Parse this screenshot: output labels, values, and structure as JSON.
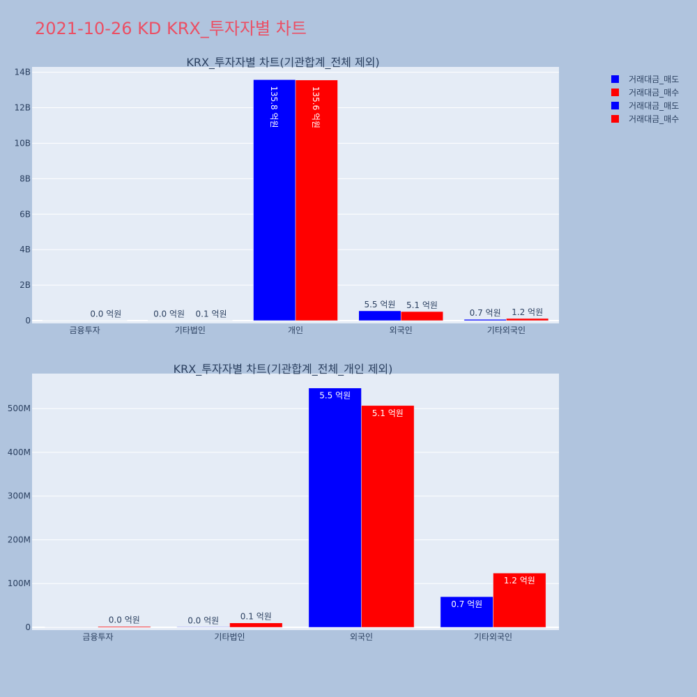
{
  "page": {
    "title": "2021-10-26 KD KRX_투자자별 차트",
    "title_color": "#eb4f64",
    "background": "#b0c4de",
    "plot_background": "#e5ecf6"
  },
  "legend": {
    "placement": "top-right",
    "items": [
      {
        "label": "거래대금_매도",
        "color": "#0000ff"
      },
      {
        "label": "거래대금_매수",
        "color": "#ff0000"
      },
      {
        "label": "거래대금_매도",
        "color": "#0000ff"
      },
      {
        "label": "거래대금_매수",
        "color": "#ff0000"
      }
    ]
  },
  "chart_data": [
    {
      "type": "bar",
      "title": "KRX_투자자별 차트(기관합계_전체 제외)",
      "categories": [
        "금융투자",
        "기타법인",
        "개인",
        "외국인",
        "기타외국인"
      ],
      "ylim": [
        0,
        14300000000
      ],
      "yticks": [
        0,
        2000000000,
        4000000000,
        6000000000,
        8000000000,
        10000000000,
        12000000000,
        14000000000
      ],
      "ytick_labels": [
        "0",
        "2B",
        "4B",
        "6B",
        "8B",
        "10B",
        "12B",
        "14B"
      ],
      "grid": true,
      "series": [
        {
          "name": "거래대금_매도",
          "color": "#0000ff",
          "values": [
            0,
            1000000,
            13580000000,
            550000000,
            70000000
          ],
          "labels": [
            "",
            "0.0 억원",
            "135.8 억원",
            "5.5 억원",
            "0.7 억원"
          ]
        },
        {
          "name": "거래대금_매수",
          "color": "#ff0000",
          "values": [
            2000000,
            10000000,
            13560000000,
            510000000,
            120000000
          ],
          "labels": [
            "0.0 억원",
            "0.1 억원",
            "135.6 억원",
            "5.1 억원",
            "1.2 억원"
          ]
        }
      ]
    },
    {
      "type": "bar",
      "title": "KRX_투자자별 차트(기관합계_전체_개인 제외)",
      "categories": [
        "금융투자",
        "기타법인",
        "외국인",
        "기타외국인"
      ],
      "ylim": [
        0,
        580000000
      ],
      "yticks": [
        0,
        100000000,
        200000000,
        300000000,
        400000000,
        500000000
      ],
      "ytick_labels": [
        "0",
        "100M",
        "200M",
        "300M",
        "400M",
        "500M"
      ],
      "grid": true,
      "series": [
        {
          "name": "거래대금_매도",
          "color": "#0000ff",
          "values": [
            0,
            1000000,
            547000000,
            70000000
          ],
          "labels": [
            "",
            "0.0 억원",
            "5.5 억원",
            "0.7 억원"
          ]
        },
        {
          "name": "거래대금_매수",
          "color": "#ff0000",
          "values": [
            2000000,
            10000000,
            507000000,
            124000000
          ],
          "labels": [
            "0.0 억원",
            "0.1 억원",
            "5.1 억원",
            "1.2 억원"
          ]
        }
      ]
    }
  ]
}
